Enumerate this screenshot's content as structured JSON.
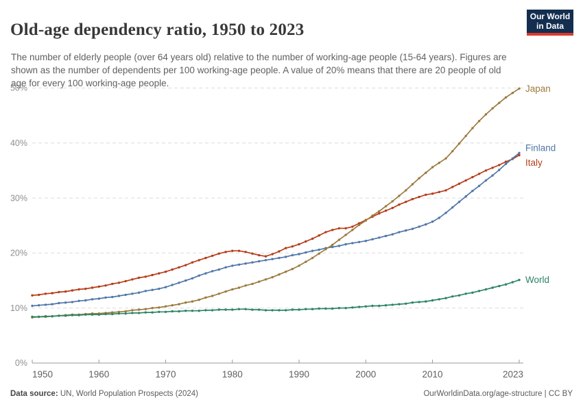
{
  "header": {
    "title": "Old-age dependency ratio, 1950 to 2023",
    "subtitle": "The number of elderly people (over 64 years old) relative to the number of working-age people (15-64 years). Figures are shown as the number of dependents per 100 working-age people. A value of 20% means that there are 20 people of old age for every 100 working-age people.",
    "logo": {
      "line1": "Our World",
      "line2": "in Data"
    }
  },
  "footer": {
    "source_label": "Data source:",
    "source_text": " UN, World Population Prospects (2024)",
    "credit": "OurWorldinData.org/age-structure | CC BY"
  },
  "colors": {
    "grid": "#dcdcdc",
    "axis": "#999999",
    "y_tick_label": "#8f8f8f",
    "x_tick_label": "#5f5f5f",
    "title": "#383838",
    "subtitle": "#606060",
    "footer": "#5b5b5b",
    "logo_bg": "#132E4F",
    "logo_bar": "#DC3A2E"
  },
  "chart_data": {
    "type": "line",
    "title": "Old-age dependency ratio, 1950 to 2023",
    "xlabel": "",
    "ylabel": "",
    "ylim": [
      0,
      50
    ],
    "yticks": [
      0,
      10,
      20,
      30,
      40,
      50
    ],
    "ytick_suffix": "%",
    "xticks": [
      1950,
      1960,
      1970,
      1980,
      1990,
      2000,
      2010,
      2023
    ],
    "grid": "horizontal-dashed",
    "legend_position": "right-end-labels",
    "markers": true,
    "x": [
      1950,
      1951,
      1952,
      1953,
      1954,
      1955,
      1956,
      1957,
      1958,
      1959,
      1960,
      1961,
      1962,
      1963,
      1964,
      1965,
      1966,
      1967,
      1968,
      1969,
      1970,
      1971,
      1972,
      1973,
      1974,
      1975,
      1976,
      1977,
      1978,
      1979,
      1980,
      1981,
      1982,
      1983,
      1984,
      1985,
      1986,
      1987,
      1988,
      1989,
      1990,
      1991,
      1992,
      1993,
      1994,
      1995,
      1996,
      1997,
      1998,
      1999,
      2000,
      2001,
      2002,
      2003,
      2004,
      2005,
      2006,
      2007,
      2008,
      2009,
      2010,
      2011,
      2012,
      2013,
      2014,
      2015,
      2016,
      2017,
      2018,
      2019,
      2020,
      2021,
      2022,
      2023
    ],
    "series": [
      {
        "name": "Italy",
        "color": "#B63C18",
        "values": [
          12.3,
          12.4,
          12.6,
          12.7,
          12.9,
          13.0,
          13.2,
          13.4,
          13.5,
          13.7,
          13.9,
          14.1,
          14.4,
          14.6,
          14.9,
          15.2,
          15.5,
          15.7,
          16.0,
          16.3,
          16.6,
          17.0,
          17.4,
          17.8,
          18.3,
          18.7,
          19.1,
          19.5,
          19.9,
          20.2,
          20.4,
          20.4,
          20.2,
          19.9,
          19.6,
          19.4,
          19.8,
          20.3,
          20.9,
          21.2,
          21.6,
          22.1,
          22.6,
          23.2,
          23.8,
          24.2,
          24.5,
          24.5,
          24.8,
          25.4,
          26.0,
          26.6,
          27.2,
          27.7,
          28.2,
          28.8,
          29.3,
          29.8,
          30.2,
          30.6,
          30.8,
          31.1,
          31.4,
          32.0,
          32.6,
          33.2,
          33.8,
          34.4,
          35.0,
          35.5,
          36.0,
          36.6,
          37.1,
          37.8
        ]
      },
      {
        "name": "Finland",
        "color": "#5077A8",
        "values": [
          10.4,
          10.5,
          10.6,
          10.7,
          10.9,
          11.0,
          11.1,
          11.3,
          11.4,
          11.6,
          11.7,
          11.9,
          12.0,
          12.2,
          12.4,
          12.6,
          12.8,
          13.1,
          13.3,
          13.5,
          13.8,
          14.2,
          14.6,
          15.0,
          15.4,
          15.9,
          16.3,
          16.7,
          17.0,
          17.4,
          17.7,
          17.9,
          18.1,
          18.3,
          18.5,
          18.7,
          18.9,
          19.1,
          19.3,
          19.6,
          19.8,
          20.1,
          20.4,
          20.6,
          20.9,
          21.1,
          21.3,
          21.6,
          21.8,
          22.0,
          22.2,
          22.5,
          22.8,
          23.1,
          23.4,
          23.8,
          24.1,
          24.4,
          24.8,
          25.2,
          25.7,
          26.4,
          27.3,
          28.3,
          29.3,
          30.3,
          31.3,
          32.2,
          33.2,
          34.1,
          35.1,
          36.2,
          37.2,
          38.2
        ]
      },
      {
        "name": "Japan",
        "color": "#9C7A3E",
        "values": [
          8.3,
          8.4,
          8.4,
          8.5,
          8.6,
          8.7,
          8.8,
          8.8,
          8.9,
          9.0,
          9.0,
          9.1,
          9.2,
          9.3,
          9.4,
          9.6,
          9.7,
          9.8,
          10.0,
          10.1,
          10.3,
          10.5,
          10.7,
          11.0,
          11.2,
          11.5,
          11.9,
          12.2,
          12.6,
          13.0,
          13.4,
          13.7,
          14.1,
          14.4,
          14.8,
          15.2,
          15.6,
          16.1,
          16.6,
          17.1,
          17.7,
          18.4,
          19.1,
          19.9,
          20.7,
          21.5,
          22.4,
          23.3,
          24.2,
          25.1,
          25.9,
          26.8,
          27.6,
          28.5,
          29.4,
          30.4,
          31.4,
          32.5,
          33.6,
          34.6,
          35.6,
          36.4,
          37.2,
          38.5,
          39.9,
          41.3,
          42.7,
          44.0,
          45.2,
          46.3,
          47.3,
          48.3,
          49.1,
          49.9
        ]
      },
      {
        "name": "World",
        "color": "#2C8465",
        "values": [
          8.4,
          8.4,
          8.5,
          8.5,
          8.6,
          8.6,
          8.7,
          8.7,
          8.8,
          8.8,
          8.8,
          8.9,
          8.9,
          9.0,
          9.0,
          9.1,
          9.1,
          9.2,
          9.2,
          9.3,
          9.3,
          9.4,
          9.4,
          9.5,
          9.5,
          9.5,
          9.6,
          9.6,
          9.7,
          9.7,
          9.7,
          9.8,
          9.8,
          9.7,
          9.7,
          9.6,
          9.6,
          9.6,
          9.6,
          9.7,
          9.7,
          9.8,
          9.8,
          9.9,
          9.9,
          9.9,
          10.0,
          10.0,
          10.1,
          10.2,
          10.3,
          10.4,
          10.4,
          10.5,
          10.6,
          10.7,
          10.8,
          11.0,
          11.1,
          11.2,
          11.4,
          11.6,
          11.8,
          12.1,
          12.3,
          12.6,
          12.8,
          13.1,
          13.4,
          13.7,
          14.0,
          14.3,
          14.7,
          15.1
        ]
      }
    ]
  }
}
